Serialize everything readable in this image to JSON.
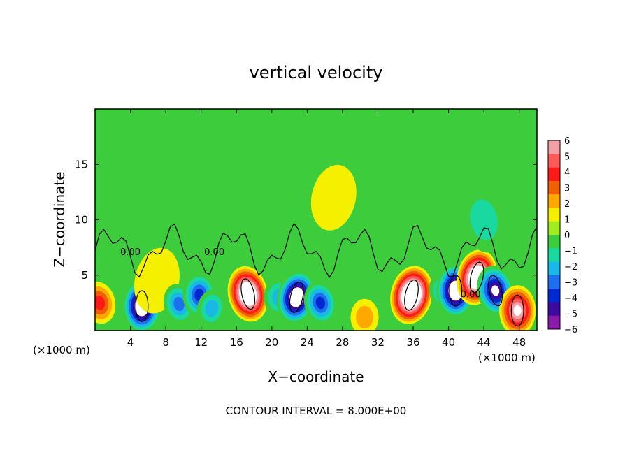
{
  "chart_data": {
    "type": "heatmap",
    "title": "vertical velocity",
    "xlabel": "X−coordinate",
    "ylabel": "Z−coordinate",
    "x_unit": "(×1000 m)",
    "x_unit_right": "(×1000 m)",
    "footer": "CONTOUR INTERVAL = 8.000E+00",
    "xlim": [
      0,
      50
    ],
    "ylim": [
      0,
      20
    ],
    "xticks": [
      4,
      8,
      12,
      16,
      20,
      24,
      28,
      32,
      36,
      40,
      44,
      48
    ],
    "yticks": [
      5,
      10,
      15
    ],
    "colorbar": {
      "ticks": [
        6,
        5,
        4,
        3,
        2,
        1,
        0,
        -1,
        -2,
        -3,
        -4,
        -5,
        -6
      ],
      "range": [
        -6,
        6
      ],
      "colors": [
        "#f2a0a6",
        "#ff5a5a",
        "#ff1a1a",
        "#f06000",
        "#ffa800",
        "#f5f000",
        "#a0ec20",
        "#3ccc3c",
        "#19d8a0",
        "#19b8e8",
        "#1e6ef0",
        "#0028d0",
        "#3c0aa0",
        "#8a1aa8"
      ]
    },
    "contour_levels": [
      -8,
      0,
      8
    ],
    "contour_labels": [
      "0.00",
      "0.00",
      "0.00"
    ],
    "cells": [
      {
        "x": 0.5,
        "z": 2.5,
        "w": 4.0
      },
      {
        "x": 5.3,
        "z": 2.2,
        "w": -8.0
      },
      {
        "x": 7.0,
        "z": 4.5,
        "w": 1.0
      },
      {
        "x": 9.5,
        "z": 2.4,
        "w": -3.5
      },
      {
        "x": 11.8,
        "z": 3.2,
        "w": -5.0
      },
      {
        "x": 13.2,
        "z": 2.0,
        "w": -2.5
      },
      {
        "x": 17.3,
        "z": 3.3,
        "w": 9.0
      },
      {
        "x": 20.8,
        "z": 3.0,
        "w": -3.0
      },
      {
        "x": 22.8,
        "z": 3.0,
        "w": -8.0
      },
      {
        "x": 25.5,
        "z": 2.5,
        "w": -4.5
      },
      {
        "x": 30.5,
        "z": 1.2,
        "w": 2.0
      },
      {
        "x": 35.8,
        "z": 3.2,
        "w": 10.0
      },
      {
        "x": 39.5,
        "z": 3.5,
        "w": -3.0
      },
      {
        "x": 40.8,
        "z": 3.6,
        "w": -8.0
      },
      {
        "x": 43.2,
        "z": 4.8,
        "w": 9.0
      },
      {
        "x": 45.3,
        "z": 3.6,
        "w": -7.0
      },
      {
        "x": 47.8,
        "z": 1.8,
        "w": 7.0
      },
      {
        "x": 27.0,
        "z": 12.0,
        "w": 1.0
      },
      {
        "x": 44.0,
        "z": 10.0,
        "w": -1.5
      }
    ]
  }
}
